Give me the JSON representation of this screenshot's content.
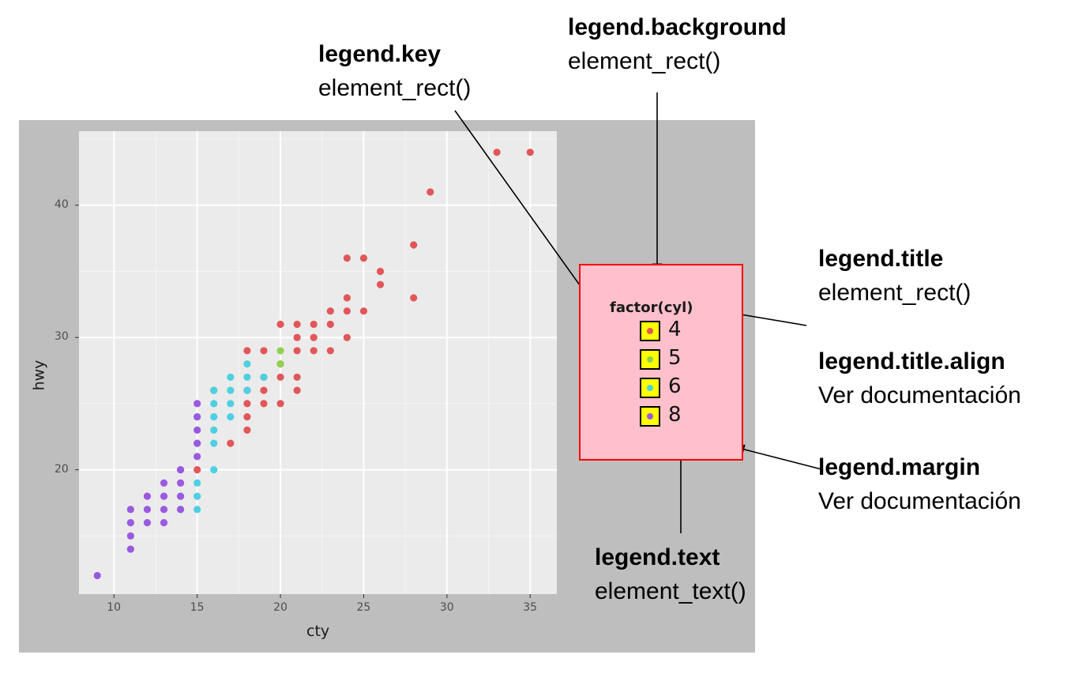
{
  "chart_data": {
    "type": "scatter",
    "xlabel": "cty",
    "ylabel": "hwy",
    "xlim": [
      7.9,
      36.6
    ],
    "ylim": [
      10.6,
      45.6
    ],
    "x_ticks": [
      10,
      15,
      20,
      25,
      30,
      35
    ],
    "y_ticks": [
      20,
      30,
      40
    ],
    "grid": true,
    "legend": {
      "title": "factor(cyl)",
      "placement": "right"
    },
    "series": [
      {
        "name": "4",
        "color": "#e15759",
        "points": [
          [
            33,
            44
          ],
          [
            35,
            44
          ],
          [
            29,
            41
          ],
          [
            28,
            37
          ],
          [
            24,
            36
          ],
          [
            25,
            36
          ],
          [
            26,
            35
          ],
          [
            26,
            34
          ],
          [
            24,
            33
          ],
          [
            28,
            33
          ],
          [
            23,
            32
          ],
          [
            24,
            32
          ],
          [
            25,
            32
          ],
          [
            20,
            31
          ],
          [
            21,
            31
          ],
          [
            22,
            31
          ],
          [
            23,
            31
          ],
          [
            21,
            30
          ],
          [
            22,
            30
          ],
          [
            24,
            30
          ],
          [
            18,
            29
          ],
          [
            19,
            29
          ],
          [
            21,
            29
          ],
          [
            22,
            29
          ],
          [
            23,
            29
          ],
          [
            20,
            28
          ],
          [
            19,
            27
          ],
          [
            20,
            27
          ],
          [
            21,
            27
          ],
          [
            18,
            26
          ],
          [
            19,
            26
          ],
          [
            21,
            26
          ],
          [
            18,
            25
          ],
          [
            19,
            25
          ],
          [
            20,
            25
          ],
          [
            18,
            24
          ],
          [
            18,
            23
          ],
          [
            17,
            22
          ],
          [
            15,
            20
          ],
          [
            16,
            26
          ]
        ]
      },
      {
        "name": "5",
        "color": "#8fd14f",
        "points": [
          [
            20,
            29
          ],
          [
            20,
            28
          ]
        ]
      },
      {
        "name": "6",
        "color": "#4dd0e1",
        "points": [
          [
            18,
            28
          ],
          [
            18,
            27
          ],
          [
            17,
            27
          ],
          [
            19,
            27
          ],
          [
            16,
            26
          ],
          [
            17,
            26
          ],
          [
            18,
            26
          ],
          [
            16,
            25
          ],
          [
            17,
            25
          ],
          [
            15,
            24
          ],
          [
            16,
            24
          ],
          [
            17,
            24
          ],
          [
            16,
            23
          ],
          [
            15,
            22
          ],
          [
            16,
            22
          ],
          [
            14,
            20
          ],
          [
            16,
            20
          ],
          [
            15,
            19
          ],
          [
            14,
            18
          ],
          [
            15,
            18
          ],
          [
            15,
            17
          ],
          [
            14,
            17
          ]
        ]
      },
      {
        "name": "8",
        "color": "#9b59e0",
        "points": [
          [
            15,
            25
          ],
          [
            15,
            24
          ],
          [
            15,
            23
          ],
          [
            15,
            22
          ],
          [
            15,
            21
          ],
          [
            14,
            20
          ],
          [
            13,
            19
          ],
          [
            14,
            19
          ],
          [
            12,
            18
          ],
          [
            13,
            18
          ],
          [
            14,
            18
          ],
          [
            11,
            17
          ],
          [
            12,
            17
          ],
          [
            13,
            17
          ],
          [
            14,
            17
          ],
          [
            11,
            16
          ],
          [
            12,
            16
          ],
          [
            13,
            16
          ],
          [
            11,
            15
          ],
          [
            11,
            14
          ],
          [
            9,
            12
          ]
        ]
      }
    ]
  },
  "legend": {
    "title": "factor(cyl)",
    "items": [
      {
        "label": "4",
        "color": "#e15759"
      },
      {
        "label": "5",
        "color": "#8fd14f"
      },
      {
        "label": "6",
        "color": "#4dd0e1"
      },
      {
        "label": "8",
        "color": "#9b59e0"
      }
    ]
  },
  "annotations": {
    "legend_key": {
      "title": "legend.key",
      "sub": "element_rect()"
    },
    "legend_background": {
      "title": "legend.background",
      "sub": "element_rect()"
    },
    "legend_title": {
      "title": "legend.title",
      "sub": "element_rect()"
    },
    "legend_title_align": {
      "title": "legend.title.align",
      "sub": "Ver documentación"
    },
    "legend_margin": {
      "title": "legend.margin",
      "sub": "Ver documentación"
    },
    "legend_text": {
      "title": "legend.text",
      "sub": "element_text()"
    }
  }
}
